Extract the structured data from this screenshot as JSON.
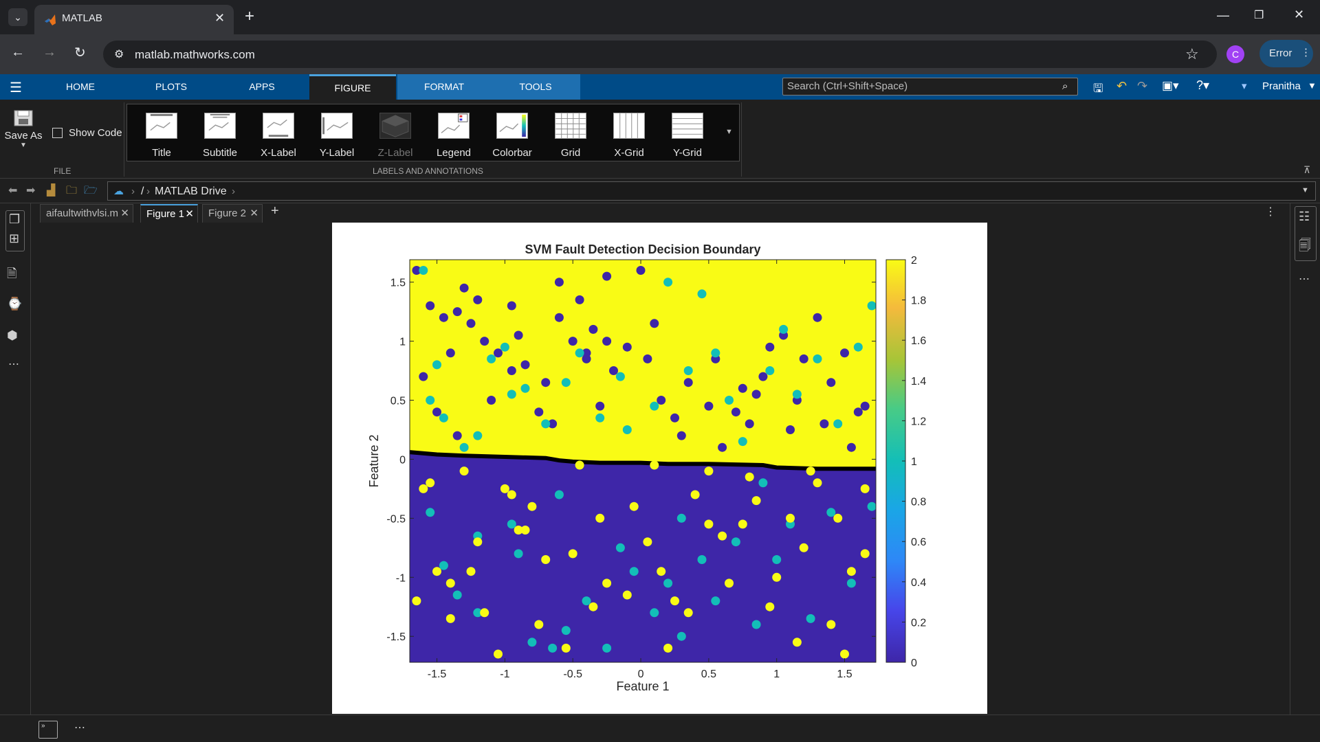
{
  "browser": {
    "tab_title": "MATLAB",
    "url": "matlab.mathworks.com",
    "avatar_letter": "C",
    "error_label": "Error"
  },
  "matlab": {
    "tabs": [
      "HOME",
      "PLOTS",
      "APPS",
      "FIGURE",
      "FORMAT",
      "TOOLS"
    ],
    "active_tab": "FIGURE",
    "search_placeholder": "Search (Ctrl+Shift+Space)",
    "user": "Pranitha"
  },
  "ribbon": {
    "save_as": "Save As",
    "show_code": "Show Code",
    "file_section": "FILE",
    "labels_section": "LABELS AND ANNOTATIONS",
    "gallery": [
      {
        "label": "Title",
        "enabled": true
      },
      {
        "label": "Subtitle",
        "enabled": true
      },
      {
        "label": "X-Label",
        "enabled": true
      },
      {
        "label": "Y-Label",
        "enabled": true
      },
      {
        "label": "Z-Label",
        "enabled": false
      },
      {
        "label": "Legend",
        "enabled": true
      },
      {
        "label": "Colorbar",
        "enabled": true
      },
      {
        "label": "Grid",
        "enabled": true
      },
      {
        "label": "X-Grid",
        "enabled": true
      },
      {
        "label": "Y-Grid",
        "enabled": true
      }
    ]
  },
  "path": {
    "root": "/",
    "drive": "MATLAB Drive"
  },
  "editor_tabs": [
    "aifaultwithvlsi.m",
    "Figure 1",
    "Figure 2"
  ],
  "active_editor_tab": "Figure 1",
  "colors": {
    "parula_low": "#3e26a8",
    "parula_high": "#f9fb15",
    "parula_mid": "#13beb8",
    "matlab_blue": "#004b87"
  },
  "chart_data": {
    "type": "scatter",
    "title": "SVM Fault Detection Decision Boundary",
    "xlabel": "Feature 1",
    "ylabel": "Feature 2",
    "xlim": [
      -1.7,
      1.73
    ],
    "ylim": [
      -1.72,
      1.69
    ],
    "xticks": [
      -1.5,
      -1,
      -0.5,
      0,
      0.5,
      1,
      1.5
    ],
    "yticks": [
      -1.5,
      -1,
      -0.5,
      0,
      0.5,
      1,
      1.5
    ],
    "background_regions": [
      {
        "class": 2,
        "color": "#f9fb15",
        "where": "above boundary"
      },
      {
        "class": 0,
        "color": "#3e26a8",
        "where": "below boundary"
      }
    ],
    "decision_boundary": {
      "x": [
        -1.7,
        -1.5,
        -1.3,
        -1.0,
        -0.7,
        -0.6,
        -0.5,
        -0.3,
        0.0,
        0.2,
        0.5,
        0.9,
        1.0,
        1.3,
        1.73
      ],
      "y": [
        0.06,
        0.04,
        0.03,
        0.02,
        0.01,
        -0.01,
        -0.02,
        -0.03,
        -0.03,
        -0.04,
        -0.04,
        -0.05,
        -0.07,
        -0.08,
        -0.08
      ]
    },
    "colorbar": {
      "limits": [
        0,
        2
      ],
      "ticks": [
        0,
        0.2,
        0.4,
        0.6,
        0.8,
        1,
        1.2,
        1.4,
        1.6,
        1.8,
        2
      ],
      "tick_labels": [
        "0",
        "0.2",
        "0.4",
        "0.6",
        "0.8",
        "1",
        "1.2",
        "1.4",
        "1.6",
        "1.8",
        "2"
      ]
    },
    "series": [
      {
        "class": 0,
        "color": "#3e26a8",
        "x": [
          -1.65,
          -1.55,
          -1.45,
          -1.4,
          -1.35,
          -1.3,
          -1.25,
          -1.2,
          -1.15,
          -1.05,
          -0.95,
          -0.9,
          -0.85,
          -0.75,
          -0.7,
          -0.65,
          -0.6,
          -0.5,
          -0.45,
          -0.4,
          -0.35,
          -0.3,
          -0.25,
          -0.2,
          -0.1,
          0.0,
          0.05,
          0.15,
          0.25,
          0.35,
          0.55,
          0.7,
          0.75,
          0.85,
          0.9,
          0.95,
          1.1,
          1.2,
          1.3,
          1.4,
          1.5,
          1.6,
          1.65,
          -1.6,
          -1.5,
          -1.35,
          -1.1,
          -0.95,
          -0.6,
          -0.4,
          -0.25,
          0.1,
          0.3,
          0.5,
          0.6,
          0.8,
          1.05,
          1.15,
          1.35,
          1.55
        ],
        "y": [
          1.6,
          1.3,
          1.2,
          0.9,
          1.25,
          1.45,
          1.15,
          1.35,
          1.0,
          0.9,
          1.3,
          1.05,
          0.8,
          0.4,
          0.65,
          0.3,
          1.5,
          1.0,
          1.35,
          0.85,
          1.1,
          0.45,
          1.0,
          0.75,
          0.95,
          1.6,
          0.85,
          0.5,
          0.35,
          0.65,
          0.85,
          0.4,
          0.6,
          0.55,
          0.7,
          0.95,
          0.25,
          0.85,
          1.2,
          0.65,
          0.9,
          0.4,
          0.45,
          0.7,
          0.4,
          0.2,
          0.5,
          0.75,
          1.2,
          0.9,
          1.55,
          1.15,
          0.2,
          0.45,
          0.1,
          0.3,
          1.05,
          0.5,
          0.3,
          0.1
        ]
      },
      {
        "class": 1,
        "color": "#13beb8",
        "x": [
          -1.6,
          -1.55,
          -1.5,
          -1.45,
          -1.3,
          -1.2,
          -1.1,
          -1.0,
          -0.95,
          -0.85,
          -0.7,
          -0.55,
          -0.45,
          -0.3,
          -0.15,
          -0.1,
          0.1,
          0.2,
          0.35,
          0.45,
          0.55,
          0.65,
          0.75,
          0.95,
          1.05,
          1.15,
          1.3,
          1.45,
          1.6,
          1.7,
          -1.55,
          -1.45,
          -1.35,
          -1.2,
          -0.95,
          -0.9,
          -0.8,
          -0.65,
          -0.55,
          -0.4,
          -0.25,
          -0.15,
          -0.05,
          0.1,
          0.2,
          0.3,
          0.45,
          0.55,
          0.7,
          0.85,
          1.0,
          1.1,
          1.25,
          1.4,
          1.55,
          1.7,
          -1.2,
          -0.6,
          0.3,
          0.9
        ],
        "y": [
          1.6,
          0.5,
          0.8,
          0.35,
          0.1,
          0.2,
          0.85,
          0.95,
          0.55,
          0.6,
          0.3,
          0.65,
          0.9,
          0.35,
          0.7,
          0.25,
          0.45,
          1.5,
          0.75,
          1.4,
          0.9,
          0.5,
          0.15,
          0.75,
          1.1,
          0.55,
          0.85,
          0.3,
          0.95,
          1.3,
          -0.45,
          -0.9,
          -1.15,
          -1.3,
          -0.55,
          -0.8,
          -1.55,
          -1.6,
          -1.45,
          -1.2,
          -1.6,
          -0.75,
          -0.95,
          -1.3,
          -1.05,
          -0.5,
          -0.85,
          -1.2,
          -0.7,
          -1.4,
          -0.85,
          -0.55,
          -1.35,
          -0.45,
          -1.05,
          -0.4,
          -0.65,
          -0.3,
          -1.5,
          -0.2
        ],
        "marker": "filled circle"
      },
      {
        "class": 2,
        "color": "#f9fb15",
        "x": [
          -1.6,
          -1.5,
          -1.4,
          -1.3,
          -1.15,
          -1.0,
          -0.9,
          -0.8,
          -0.7,
          -0.5,
          -0.45,
          -0.35,
          -0.25,
          -0.05,
          0.1,
          0.25,
          0.4,
          0.5,
          0.65,
          0.8,
          0.95,
          1.1,
          1.25,
          1.4,
          1.55,
          1.65,
          -1.65,
          -1.4,
          -1.25,
          -1.05,
          -0.85,
          -0.75,
          -0.55,
          -0.3,
          -0.1,
          0.05,
          0.15,
          0.35,
          0.6,
          0.75,
          1.0,
          1.15,
          1.3,
          1.5,
          1.65,
          -1.55,
          -1.2,
          -0.95,
          0.2,
          0.5,
          0.85,
          1.2,
          1.45
        ],
        "y": [
          -0.25,
          -0.95,
          -1.05,
          -0.1,
          -1.3,
          -0.25,
          -0.6,
          -0.4,
          -0.85,
          -0.8,
          -0.05,
          -1.25,
          -1.05,
          -0.4,
          -0.05,
          -1.2,
          -0.3,
          -0.55,
          -1.05,
          -0.15,
          -1.25,
          -0.5,
          -0.1,
          -1.4,
          -0.95,
          -0.8,
          -1.2,
          -1.35,
          -0.95,
          -1.65,
          -0.6,
          -1.4,
          -1.6,
          -0.5,
          -1.15,
          -0.7,
          -0.95,
          -1.3,
          -0.65,
          -0.55,
          -1.0,
          -1.55,
          -0.2,
          -1.65,
          -0.25,
          -0.2,
          -0.7,
          -0.3,
          -1.6,
          -0.1,
          -0.35,
          -0.75,
          -0.5
        ]
      }
    ]
  }
}
